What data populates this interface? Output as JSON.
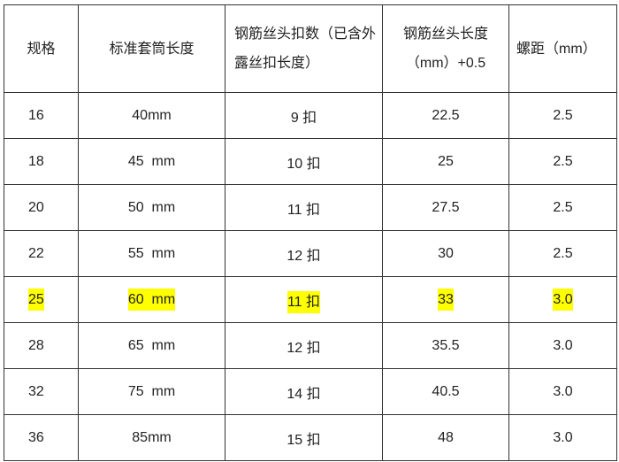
{
  "table": {
    "headers": [
      "规格",
      "标准套筒长度",
      "钢筋丝头扣数（已含外露丝扣长度）",
      "钢筋丝头长度（mm）+0.5",
      "螺距（mm）"
    ],
    "rows": [
      {
        "cells": [
          "16",
          "40mm",
          "9 扣",
          "22.5",
          "2.5"
        ],
        "highlighted": false
      },
      {
        "cells": [
          "18",
          "45  mm",
          "10 扣",
          "25",
          "2.5"
        ],
        "highlighted": false
      },
      {
        "cells": [
          "20",
          "50  mm",
          "11 扣",
          "27.5",
          "2.5"
        ],
        "highlighted": false
      },
      {
        "cells": [
          "22",
          "55  mm",
          "12 扣",
          "30",
          "2.5"
        ],
        "highlighted": false
      },
      {
        "cells": [
          "25",
          "60  mm",
          "11 扣",
          "33",
          "3.0"
        ],
        "highlighted": true
      },
      {
        "cells": [
          "28",
          "65  mm",
          "12 扣",
          "35.5",
          "3.0"
        ],
        "highlighted": false
      },
      {
        "cells": [
          "32",
          "75  mm",
          "14 扣",
          "40.5",
          "3.0"
        ],
        "highlighted": false
      },
      {
        "cells": [
          "36",
          "85mm",
          "15 扣",
          "48",
          "3.0"
        ],
        "highlighted": false
      }
    ],
    "highlight_color": "#ffff00"
  }
}
